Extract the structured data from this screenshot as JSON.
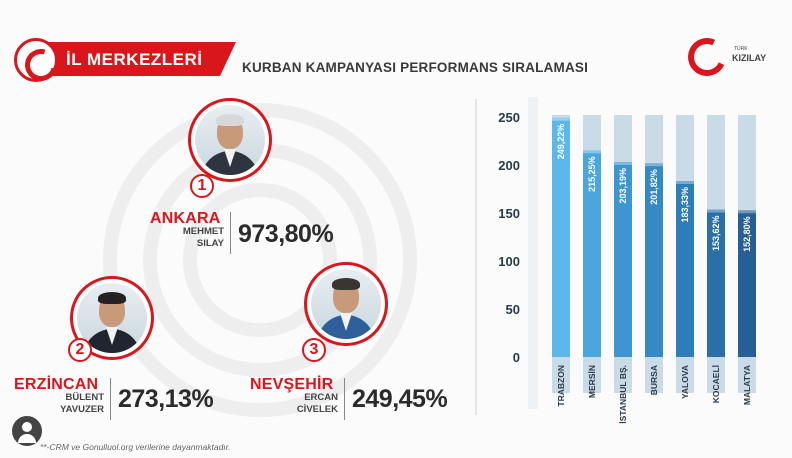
{
  "header": {
    "banner_title": "İL MERKEZLERİ",
    "subtitle": "KURBAN KAMPANYASI PERFORMANS SIRALAMASI",
    "logo_small": "TÜRK",
    "logo_big": "KIZILAY",
    "brand_color": "#d9161b"
  },
  "ranking": [
    {
      "rank": "1",
      "city": "ANKARA",
      "first_name": "MEHMET",
      "last_name": "SILAY",
      "percent": "973,80%"
    },
    {
      "rank": "2",
      "city": "ERZİNCAN",
      "first_name": "BÜLENT",
      "last_name": "YAVUZER",
      "percent": "273,13%"
    },
    {
      "rank": "3",
      "city": "NEVŞEHİR",
      "first_name": "ERCAN",
      "last_name": "CİVELEK",
      "percent": "249,45%"
    }
  ],
  "chart_data": {
    "type": "bar",
    "categories": [
      "TRABZON",
      "MERSİN",
      "İSTANBUL BŞ.",
      "BURSA",
      "YALOVA",
      "KOCAELİ",
      "MALATYA"
    ],
    "values": [
      249.22,
      215.25,
      203.19,
      201.82,
      183.33,
      153.62,
      152.8
    ],
    "data_labels": [
      "249,22%",
      "215,25%",
      "203,19%",
      "201,82%",
      "183,33%",
      "153,62%",
      "152,80%"
    ],
    "y_ticks": [
      0,
      50,
      100,
      150,
      200,
      250
    ],
    "ylim": [
      0,
      250
    ],
    "bar_colors": [
      "#5bb8e8",
      "#4aa6dc",
      "#3e96d0",
      "#3589c4",
      "#2d7db8",
      "#2a6fa8",
      "#255f95"
    ],
    "track_color": "#c8dbe7",
    "grid": false
  },
  "footnote": "**-CRM ve Gonulluol.org verilerine dayanmaktadır."
}
